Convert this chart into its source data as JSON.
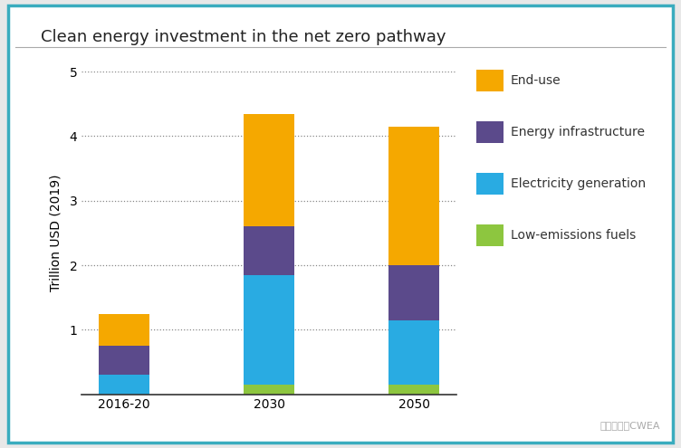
{
  "title": "Clean energy investment in the net zero pathway",
  "ylabel": "Trillion USD (2019)",
  "categories": [
    "2016-20",
    "2030",
    "2050"
  ],
  "series": {
    "Low-emissions fuels": [
      0.0,
      0.15,
      0.15
    ],
    "Electricity generation": [
      0.3,
      1.7,
      1.0
    ],
    "Energy infrastructure": [
      0.45,
      0.75,
      0.85
    ],
    "End-use": [
      0.5,
      1.75,
      2.15
    ]
  },
  "colors": {
    "Low-emissions fuels": "#8DC63F",
    "Electricity generation": "#29ABE2",
    "Energy infrastructure": "#5B4A8B",
    "End-use": "#F5A800"
  },
  "ylim": [
    0,
    5
  ],
  "yticks": [
    1,
    2,
    3,
    4,
    5
  ],
  "bar_width": 0.35,
  "background_color": "#FFFFFF",
  "outer_border_color": "#3AACBE",
  "inner_bg_color": "#FFFFFF",
  "title_fontsize": 13,
  "axis_label_fontsize": 10,
  "tick_fontsize": 10,
  "legend_fontsize": 10,
  "watermark": "風能专委会CWEA"
}
